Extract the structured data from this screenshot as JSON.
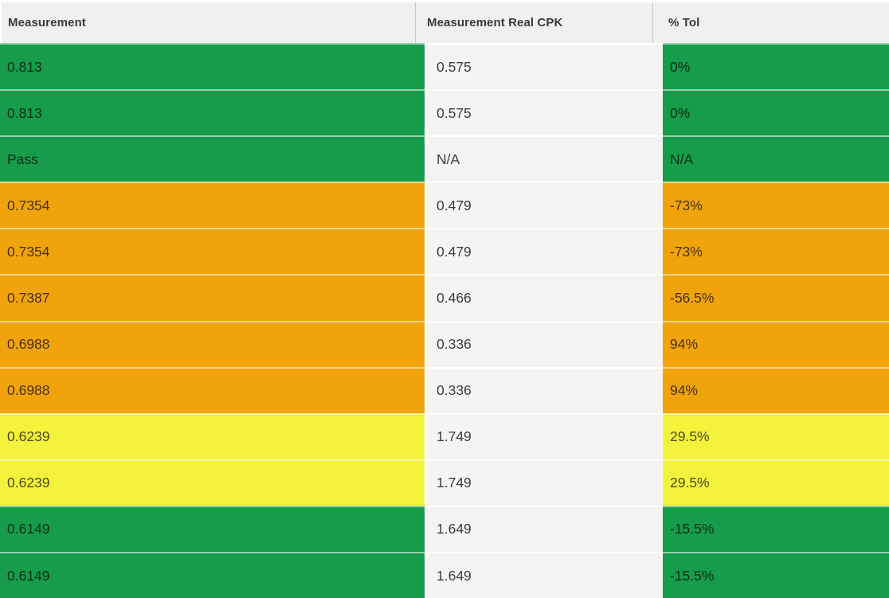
{
  "table": {
    "columns": [
      {
        "label": "Measurement"
      },
      {
        "label": "Measurement Real CPK"
      },
      {
        "label": "% Tol"
      }
    ],
    "status_colors": {
      "green": "#169C4A",
      "orange": "#F0A30B",
      "yellow": "#F3F33B"
    },
    "header_bg": "#F1F0EF",
    "cpk_cell_bg": "#F5F4F3",
    "rows": [
      {
        "measurement": "0.813",
        "cpk": "0.575",
        "tol": "0%",
        "status": "green"
      },
      {
        "measurement": "0.813",
        "cpk": "0.575",
        "tol": "0%",
        "status": "green"
      },
      {
        "measurement": "Pass",
        "cpk": "N/A",
        "tol": "N/A",
        "status": "green"
      },
      {
        "measurement": "0.7354",
        "cpk": "0.479",
        "tol": "-73%",
        "status": "orange"
      },
      {
        "measurement": "0.7354",
        "cpk": "0.479",
        "tol": "-73%",
        "status": "orange"
      },
      {
        "measurement": "0.7387",
        "cpk": "0.466",
        "tol": "-56.5%",
        "status": "orange"
      },
      {
        "measurement": "0.6988",
        "cpk": "0.336",
        "tol": "94%",
        "status": "orange"
      },
      {
        "measurement": "0.6988",
        "cpk": "0.336",
        "tol": "94%",
        "status": "orange"
      },
      {
        "measurement": "0.6239",
        "cpk": "1.749",
        "tol": "29.5%",
        "status": "yellow"
      },
      {
        "measurement": "0.6239",
        "cpk": "1.749",
        "tol": "29.5%",
        "status": "yellow"
      },
      {
        "measurement": "0.6149",
        "cpk": "1.649",
        "tol": "-15.5%",
        "status": "green"
      },
      {
        "measurement": "0.6149",
        "cpk": "1.649",
        "tol": "-15.5%",
        "status": "green"
      }
    ]
  }
}
